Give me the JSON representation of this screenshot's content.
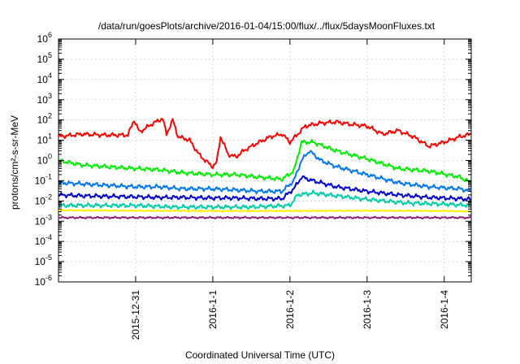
{
  "chart_data": {
    "type": "line",
    "title": "/data/run/goesPlots/archive/2016-01-04/15:00/flux/../flux/5daysMoonFluxes.txt",
    "xlabel": "Coordinated Universal Time (UTC)",
    "ylabel": "protons/cm²-s-sr-MeV",
    "ylim": [
      1e-06,
      1000000.0
    ],
    "yscale": "log",
    "xlim": [
      0,
      5.35
    ],
    "x_unit": "days since 2015-12-30 00:00 UTC",
    "x_ticks": [
      {
        "value": 1,
        "label": "2015-12-31"
      },
      {
        "value": 2,
        "label": "2016-1-1"
      },
      {
        "value": 3,
        "label": "2016-1-2"
      },
      {
        "value": 4,
        "label": "2016-1-3"
      },
      {
        "value": 5,
        "label": "2016-1-4"
      }
    ],
    "y_ticks": [
      {
        "value": 1e-06,
        "base": "10",
        "exp": "-6"
      },
      {
        "value": 1e-05,
        "base": "10",
        "exp": "-5"
      },
      {
        "value": 0.0001,
        "base": "10",
        "exp": "-4"
      },
      {
        "value": 0.001,
        "base": "10",
        "exp": "-3"
      },
      {
        "value": 0.01,
        "base": "10",
        "exp": "-2"
      },
      {
        "value": 0.1,
        "base": "10",
        "exp": "-1"
      },
      {
        "value": 1,
        "base": "10",
        "exp": "0"
      },
      {
        "value": 10.0,
        "base": "10",
        "exp": "1"
      },
      {
        "value": 100.0,
        "base": "10",
        "exp": "2"
      },
      {
        "value": 1000.0,
        "base": "10",
        "exp": "3"
      },
      {
        "value": 10000.0,
        "base": "10",
        "exp": "4"
      },
      {
        "value": 100000.0,
        "base": "10",
        "exp": "5"
      },
      {
        "value": 1000000.0,
        "base": "10",
        "exp": "6"
      }
    ],
    "grid": true,
    "series": [
      {
        "color": "#ff0000",
        "x": [
          0,
          0.3,
          0.6,
          0.9,
          0.98,
          1.05,
          1.2,
          1.35,
          1.4,
          1.48,
          1.55,
          1.7,
          1.82,
          1.9,
          2.0,
          2.05,
          2.1,
          2.2,
          2.3,
          2.4,
          2.5,
          2.6,
          2.75,
          2.9,
          3.0,
          3.2,
          3.4,
          3.6,
          3.8,
          4.0,
          4.2,
          4.4,
          4.6,
          4.8,
          5.0,
          5.2,
          5.35
        ],
        "y": [
          15,
          20,
          18,
          18,
          100,
          25,
          60,
          120,
          20,
          100,
          15,
          10,
          2,
          1,
          0.5,
          0.8,
          15,
          2,
          1.5,
          3,
          5,
          8,
          15,
          20,
          8,
          50,
          70,
          80,
          60,
          50,
          20,
          30,
          15,
          5,
          8,
          15,
          20
        ]
      },
      {
        "color": "#00ee00",
        "x": [
          0,
          0.3,
          0.6,
          1.0,
          1.3,
          1.6,
          2.0,
          2.3,
          2.6,
          2.9,
          3.05,
          3.15,
          3.3,
          3.6,
          4.0,
          4.4,
          4.8,
          5.2,
          5.35
        ],
        "y": [
          1,
          0.6,
          0.5,
          0.4,
          0.35,
          0.25,
          0.2,
          0.2,
          0.15,
          0.12,
          0.3,
          8,
          8,
          3,
          1.2,
          0.4,
          0.3,
          0.15,
          0.08
        ]
      },
      {
        "color": "#0077ee",
        "x": [
          0,
          0.3,
          0.6,
          1.0,
          1.3,
          1.6,
          2.0,
          2.3,
          2.6,
          2.9,
          3.05,
          3.15,
          3.25,
          3.4,
          3.6,
          4.0,
          4.4,
          4.8,
          5.2,
          5.35
        ],
        "y": [
          0.08,
          0.07,
          0.06,
          0.05,
          0.05,
          0.04,
          0.04,
          0.035,
          0.03,
          0.03,
          0.1,
          1,
          3,
          1,
          0.5,
          0.2,
          0.08,
          0.05,
          0.04,
          0.03
        ]
      },
      {
        "color": "#0000cc",
        "x": [
          0,
          0.3,
          0.6,
          1.0,
          1.3,
          1.6,
          2.0,
          2.3,
          2.6,
          2.9,
          3.05,
          3.15,
          3.3,
          3.6,
          4.0,
          4.4,
          4.8,
          5.2,
          5.35
        ],
        "y": [
          0.02,
          0.018,
          0.017,
          0.016,
          0.015,
          0.015,
          0.014,
          0.014,
          0.013,
          0.013,
          0.04,
          0.15,
          0.1,
          0.05,
          0.03,
          0.02,
          0.015,
          0.013,
          0.012
        ]
      },
      {
        "color": "#00ccaa",
        "x": [
          0,
          0.5,
          1.0,
          1.5,
          2.0,
          2.5,
          3.0,
          3.1,
          3.3,
          3.6,
          4.0,
          4.5,
          5.0,
          5.35
        ],
        "y": [
          0.006,
          0.006,
          0.006,
          0.005,
          0.005,
          0.005,
          0.006,
          0.02,
          0.025,
          0.018,
          0.012,
          0.008,
          0.007,
          0.006
        ]
      },
      {
        "color": "#ffee00",
        "x": [
          0,
          1,
          2,
          3,
          4,
          5,
          5.35
        ],
        "y": [
          0.0035,
          0.0033,
          0.0032,
          0.0032,
          0.0033,
          0.0032,
          0.003
        ]
      },
      {
        "color": "#882277",
        "x": [
          0,
          1,
          2,
          3,
          4,
          5,
          5.35
        ],
        "y": [
          0.0015,
          0.0015,
          0.0015,
          0.0015,
          0.0015,
          0.0015,
          0.0015
        ]
      }
    ]
  }
}
